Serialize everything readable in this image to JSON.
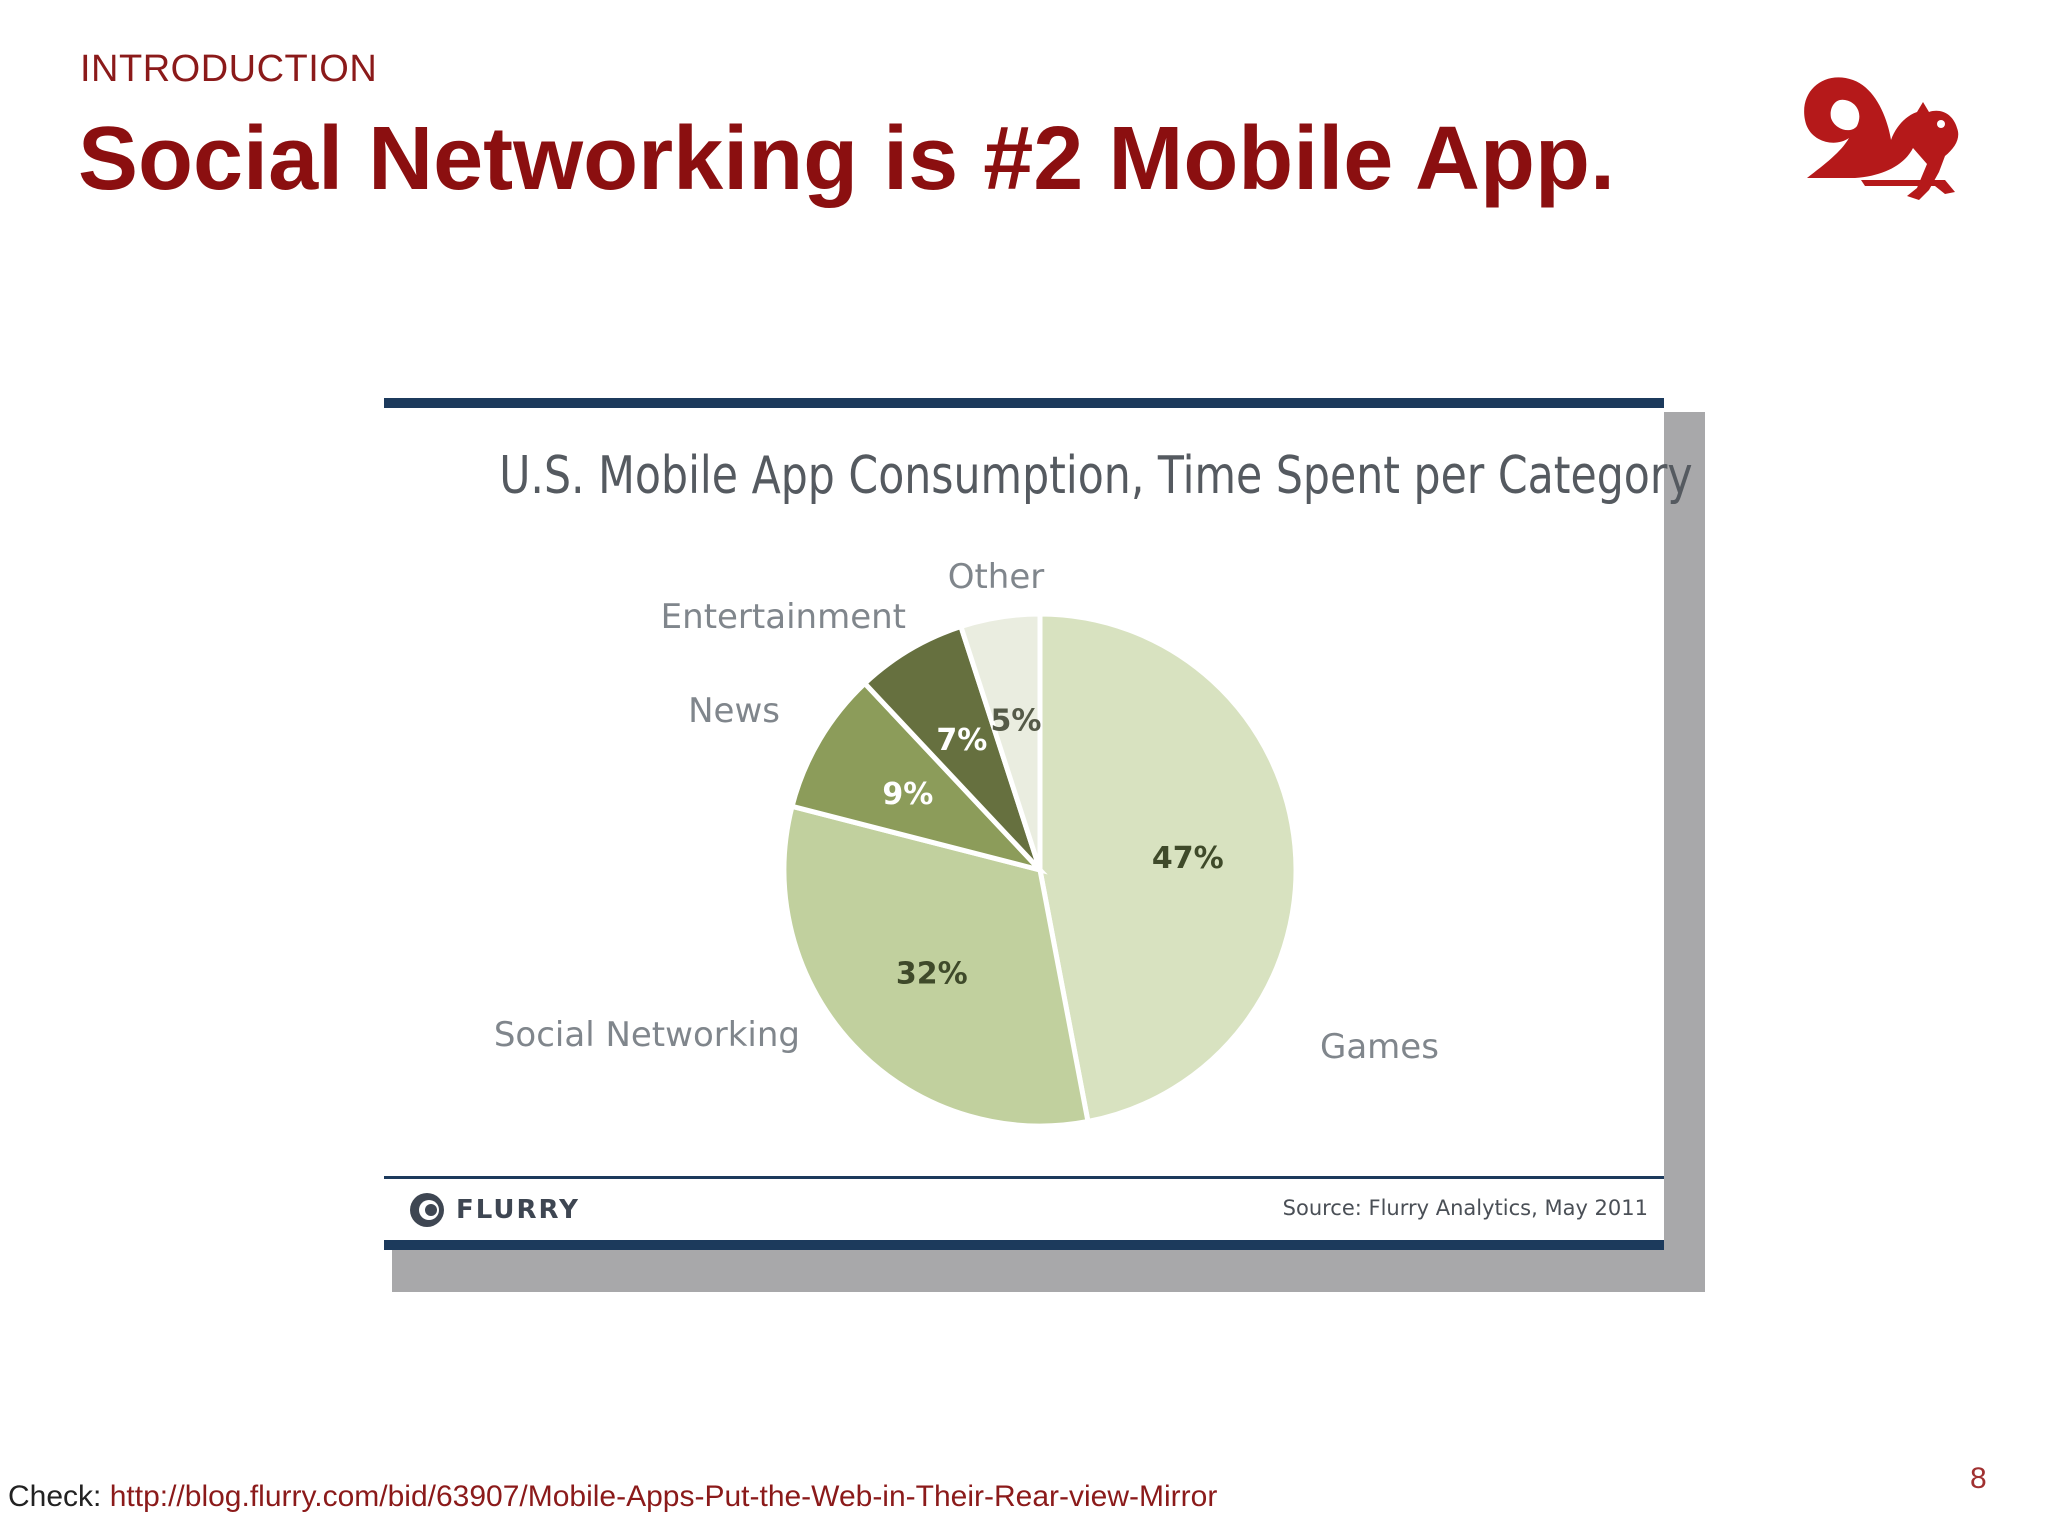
{
  "slide": {
    "section": "INTRODUCTION",
    "title": "Social Networking is #2 Mobile App.",
    "footer_prefix": "Check:",
    "footer_url": "http://blog.flurry.com/bid/63907/Mobile-Apps-Put-the-Web-in-Their-Rear-view-Mirror",
    "page_number": "8"
  },
  "colors": {
    "accent": "#8b0f10",
    "rule": "#1c3a5c",
    "games": "#d8e2c0",
    "social": "#c1d09e",
    "news": "#8c9c5a",
    "entertainment": "#66703f",
    "other": "#eaede0"
  },
  "logo_icon": "squirrel-icon",
  "figure": {
    "brand": "FLURRY",
    "source": "Source: Flurry Analytics, May 2011"
  },
  "chart_data": {
    "type": "pie",
    "title": "U.S. Mobile App Consumption, Time Spent per Category",
    "slices": [
      {
        "label": "Games",
        "value": 47,
        "value_label": "47%",
        "color": "#d8e2c0",
        "label_color": "#3f4a2a"
      },
      {
        "label": "Social Networking",
        "value": 32,
        "value_label": "32%",
        "color": "#c1d09e",
        "label_color": "#3f4a2a"
      },
      {
        "label": "News",
        "value": 9,
        "value_label": "9%",
        "color": "#8c9c5a",
        "label_color": "#ffffff"
      },
      {
        "label": "Entertainment",
        "value": 7,
        "value_label": "7%",
        "color": "#66703f",
        "label_color": "#ffffff"
      },
      {
        "label": "Other",
        "value": 5,
        "value_label": "5%",
        "color": "#eaede0",
        "label_color": "#555a48"
      }
    ],
    "start_angle": "12 o'clock",
    "direction": "clockwise",
    "legend": "none (category labels beside slices)"
  }
}
